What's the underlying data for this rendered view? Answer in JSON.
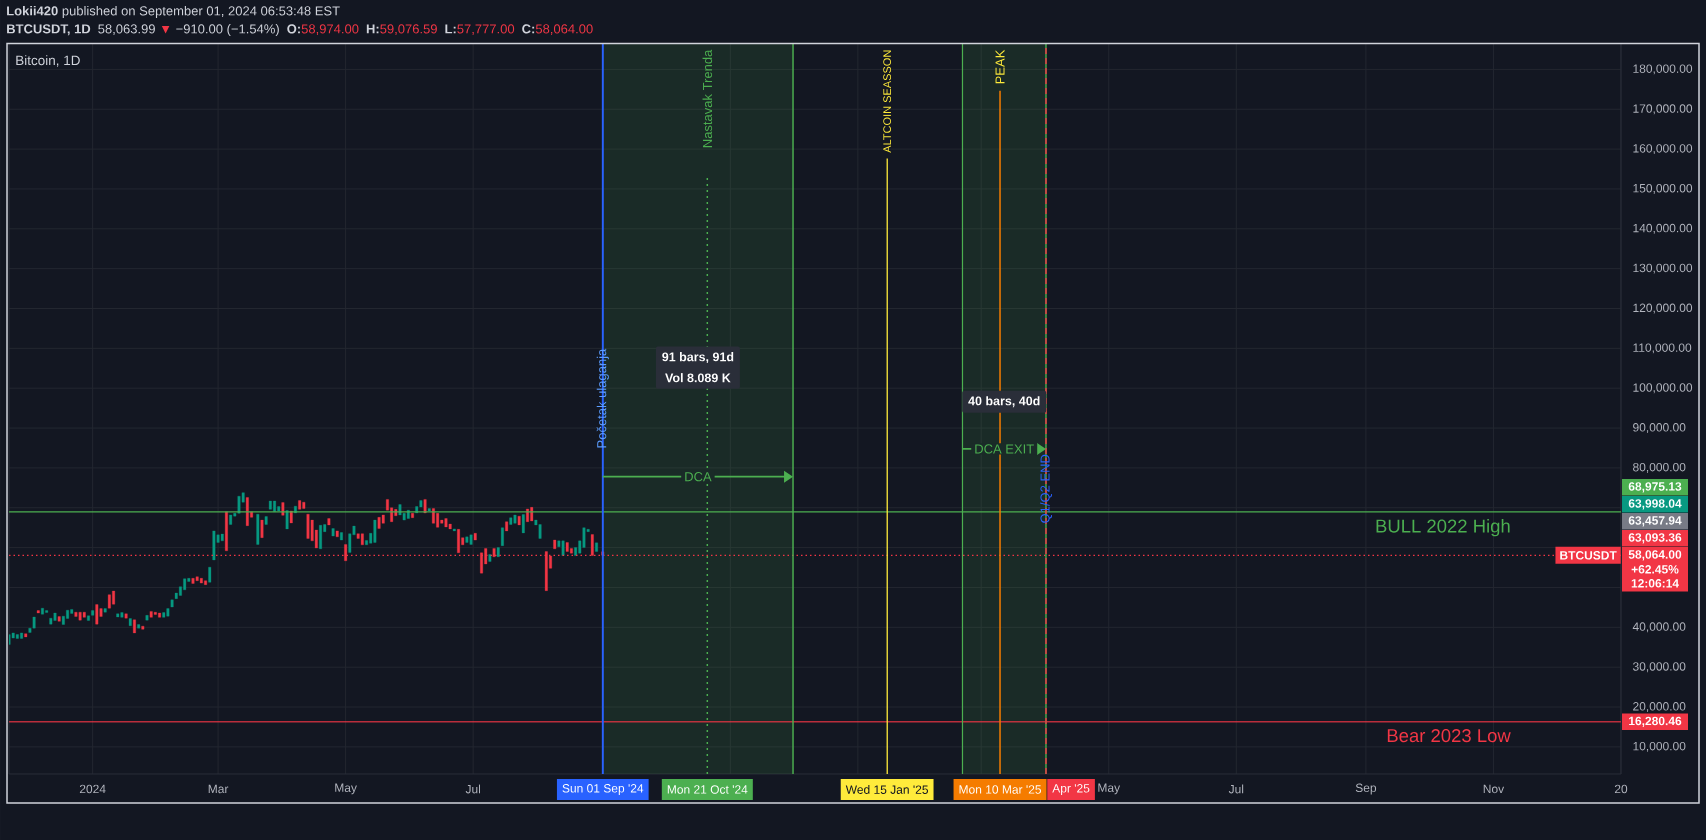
{
  "chart_data": {
    "type": "candlestick",
    "title": "Bitcoin, 1D",
    "subtitle": "**Lokii420** published on September 01, 2024 06:53:48 EST",
    "x": [
      "2023-11-22",
      "2023-11-24",
      "2023-11-26",
      "2023-11-28",
      "2023-11-30",
      "2023-12-02",
      "2023-12-04",
      "2023-12-06",
      "2023-12-08",
      "2023-12-10",
      "2023-12-12",
      "2023-12-14",
      "2023-12-16",
      "2023-12-18",
      "2023-12-20",
      "2023-12-22",
      "2023-12-24",
      "2023-12-26",
      "2023-12-28",
      "2023-12-30",
      "2024-01-01",
      "2024-01-03",
      "2024-01-05",
      "2024-01-07",
      "2024-01-09",
      "2024-01-11",
      "2024-01-13",
      "2024-01-15",
      "2024-01-17",
      "2024-01-19",
      "2024-01-21",
      "2024-01-23",
      "2024-01-25",
      "2024-01-27",
      "2024-01-29",
      "2024-01-31",
      "2024-02-02",
      "2024-02-04",
      "2024-02-06",
      "2024-02-08",
      "2024-02-10",
      "2024-02-12",
      "2024-02-14",
      "2024-02-16",
      "2024-02-18",
      "2024-02-20",
      "2024-02-22",
      "2024-02-24",
      "2024-02-26",
      "2024-02-28",
      "2024-03-01",
      "2024-03-03",
      "2024-03-05",
      "2024-03-07",
      "2024-03-09",
      "2024-03-11",
      "2024-03-13",
      "2024-03-15",
      "2024-03-17",
      "2024-03-20",
      "2024-03-22",
      "2024-03-24",
      "2024-03-26",
      "2024-03-28",
      "2024-03-30",
      "2024-04-01",
      "2024-04-03",
      "2024-04-05",
      "2024-04-07",
      "2024-04-09",
      "2024-04-11",
      "2024-04-13",
      "2024-04-15",
      "2024-04-17",
      "2024-04-19",
      "2024-04-21",
      "2024-04-23",
      "2024-04-25",
      "2024-04-27",
      "2024-04-29",
      "2024-05-01",
      "2024-05-03",
      "2024-05-05",
      "2024-05-07",
      "2024-05-09",
      "2024-05-11",
      "2024-05-13",
      "2024-05-15",
      "2024-05-17",
      "2024-05-19",
      "2024-05-21",
      "2024-05-23",
      "2024-05-25",
      "2024-05-27",
      "2024-05-29",
      "2024-05-31",
      "2024-06-02",
      "2024-06-04",
      "2024-06-06",
      "2024-06-08",
      "2024-06-10",
      "2024-06-12",
      "2024-06-14",
      "2024-06-16",
      "2024-06-18",
      "2024-06-20",
      "2024-06-22",
      "2024-06-24",
      "2024-06-26",
      "2024-06-28",
      "2024-06-30",
      "2024-07-02",
      "2024-07-05",
      "2024-07-07",
      "2024-07-09",
      "2024-07-11",
      "2024-07-13",
      "2024-07-15",
      "2024-07-17",
      "2024-07-19",
      "2024-07-21",
      "2024-07-23",
      "2024-07-25",
      "2024-07-27",
      "2024-07-29",
      "2024-07-31",
      "2024-08-02",
      "2024-08-05",
      "2024-08-07",
      "2024-08-09",
      "2024-08-11",
      "2024-08-13",
      "2024-08-15",
      "2024-08-17",
      "2024-08-19",
      "2024-08-21",
      "2024-08-23",
      "2024-08-25",
      "2024-08-27",
      "2024-08-29",
      "2024-09-01"
    ],
    "ohlc": [
      [
        35700,
        38200,
        35700,
        38200
      ],
      [
        37300,
        38600,
        37300,
        38600
      ],
      [
        37200,
        38200,
        37200,
        38200
      ],
      [
        37200,
        38600,
        37200,
        38600
      ],
      [
        38400,
        38400,
        37600,
        37600
      ],
      [
        38700,
        39800,
        38700,
        39800
      ],
      [
        39800,
        42600,
        39800,
        42600
      ],
      [
        44200,
        44200,
        43600,
        43600
      ],
      [
        43300,
        44800,
        43300,
        44800
      ],
      [
        43700,
        44200,
        43700,
        44200
      ],
      [
        40800,
        42300,
        40800,
        42300
      ],
      [
        41700,
        43600,
        41700,
        43600
      ],
      [
        42700,
        42700,
        41500,
        41500
      ],
      [
        40700,
        42800,
        40700,
        42800
      ],
      [
        42200,
        44300,
        42200,
        44300
      ],
      [
        43500,
        44500,
        43500,
        44500
      ],
      [
        43800,
        43800,
        42700,
        42700
      ],
      [
        43800,
        43800,
        41800,
        41800
      ],
      [
        43800,
        43800,
        42500,
        42500
      ],
      [
        41700,
        42900,
        41700,
        42900
      ],
      [
        43000,
        44200,
        43000,
        44200
      ],
      [
        45700,
        45700,
        40800,
        40800
      ],
      [
        44700,
        44700,
        42700,
        42700
      ],
      [
        43800,
        44700,
        43800,
        44700
      ],
      [
        48200,
        48200,
        44800,
        44800
      ],
      [
        49100,
        49100,
        45800,
        45800
      ],
      [
        42600,
        43400,
        42600,
        43400
      ],
      [
        42500,
        43700,
        42500,
        43700
      ],
      [
        43400,
        43400,
        42300,
        42300
      ],
      [
        40400,
        42200,
        40400,
        42200
      ],
      [
        41900,
        41900,
        38600,
        38600
      ],
      [
        39800,
        40700,
        39800,
        40700
      ],
      [
        40300,
        40300,
        39500,
        39500
      ],
      [
        41800,
        43000,
        41800,
        43000
      ],
      [
        44000,
        44000,
        42500,
        42500
      ],
      [
        43800,
        43800,
        43200,
        43200
      ],
      [
        43600,
        43600,
        42500,
        42500
      ],
      [
        42500,
        43700,
        42500,
        43700
      ],
      [
        42800,
        44700,
        42800,
        44700
      ],
      [
        45100,
        46900,
        45100,
        46900
      ],
      [
        47200,
        48600,
        47200,
        48600
      ],
      [
        48000,
        50200,
        48000,
        50200
      ],
      [
        49400,
        52200,
        49400,
        52200
      ],
      [
        51500,
        52300,
        51500,
        52300
      ],
      [
        52300,
        52300,
        51000,
        51000
      ],
      [
        52700,
        52700,
        51700,
        51700
      ],
      [
        52300,
        52300,
        51100,
        51100
      ],
      [
        51700,
        51700,
        50700,
        50700
      ],
      [
        51300,
        55100,
        51300,
        55100
      ],
      [
        56900,
        64200,
        56900,
        64200
      ],
      [
        61300,
        63200,
        61300,
        63200
      ],
      [
        61700,
        63400,
        61700,
        63400
      ],
      [
        69000,
        69000,
        59200,
        59200
      ],
      [
        65800,
        68200,
        65800,
        68200
      ],
      [
        67900,
        68600,
        67900,
        68600
      ],
      [
        68600,
        72900,
        68600,
        72900
      ],
      [
        71400,
        73800,
        71400,
        73800
      ],
      [
        72600,
        72600,
        65500,
        65500
      ],
      [
        69000,
        69000,
        67600,
        67600
      ],
      [
        60800,
        68400,
        60800,
        68400
      ],
      [
        66900,
        66900,
        62500,
        62500
      ],
      [
        65800,
        67800,
        65800,
        67800
      ],
      [
        69600,
        71700,
        69600,
        71700
      ],
      [
        69000,
        71700,
        69000,
        71700
      ],
      [
        69200,
        70300,
        69200,
        70300
      ],
      [
        71300,
        71300,
        68100,
        68100
      ],
      [
        64700,
        69300,
        64700,
        69300
      ],
      [
        69200,
        69200,
        66200,
        66200
      ],
      [
        68700,
        70400,
        68700,
        70400
      ],
      [
        71800,
        71800,
        69600,
        69600
      ],
      [
        71400,
        71400,
        69800,
        69800
      ],
      [
        68400,
        68400,
        62300,
        62300
      ],
      [
        66900,
        66900,
        61700,
        61700
      ],
      [
        64400,
        64400,
        59900,
        59900
      ],
      [
        59700,
        65600,
        59700,
        65600
      ],
      [
        64000,
        65800,
        64000,
        65800
      ],
      [
        67300,
        67300,
        65700,
        65700
      ],
      [
        62900,
        64800,
        62900,
        64800
      ],
      [
        64200,
        64200,
        62700,
        62700
      ],
      [
        61900,
        63800,
        61900,
        63800
      ],
      [
        60800,
        60800,
        56700,
        56700
      ],
      [
        58800,
        63500,
        58800,
        63500
      ],
      [
        63200,
        65400,
        63200,
        65400
      ],
      [
        63500,
        63500,
        62300,
        62300
      ],
      [
        63500,
        63500,
        60700,
        60700
      ],
      [
        60700,
        61800,
        60700,
        61800
      ],
      [
        61100,
        63600,
        61100,
        63600
      ],
      [
        61300,
        66900,
        61300,
        66900
      ],
      [
        67600,
        67600,
        64800,
        64800
      ],
      [
        68200,
        68200,
        66100,
        66100
      ],
      [
        72100,
        72100,
        69400,
        69400
      ],
      [
        70000,
        70000,
        66500,
        66500
      ],
      [
        69600,
        69600,
        68000,
        68000
      ],
      [
        68200,
        70800,
        68200,
        70800
      ],
      [
        66900,
        68600,
        66900,
        68600
      ],
      [
        67300,
        69400,
        67300,
        69400
      ],
      [
        68600,
        68600,
        67500,
        67500
      ],
      [
        68700,
        70300,
        68700,
        70300
      ],
      [
        70200,
        71800,
        70200,
        71800
      ],
      [
        72100,
        72100,
        68700,
        68700
      ],
      [
        69200,
        69800,
        69200,
        69800
      ],
      [
        69800,
        69800,
        66100,
        66100
      ],
      [
        68600,
        68600,
        65100,
        65100
      ],
      [
        66900,
        66900,
        66100,
        66100
      ],
      [
        67300,
        67300,
        65200,
        65200
      ],
      [
        65900,
        65900,
        64700,
        64700
      ],
      [
        64200,
        64700,
        64200,
        64700
      ],
      [
        64600,
        64600,
        58700,
        58700
      ],
      [
        62500,
        62500,
        60700,
        60700
      ],
      [
        61300,
        62700,
        61300,
        62700
      ],
      [
        60800,
        63200,
        60800,
        63200
      ],
      [
        63600,
        63600,
        61900,
        61900
      ],
      [
        58700,
        58700,
        53600,
        53600
      ],
      [
        59800,
        59800,
        55900,
        55900
      ],
      [
        56500,
        58300,
        56500,
        58300
      ],
      [
        59800,
        59800,
        57700,
        57700
      ],
      [
        57700,
        60000,
        57700,
        60000
      ],
      [
        60500,
        65000,
        60500,
        65000
      ],
      [
        66500,
        66500,
        64200,
        64200
      ],
      [
        65800,
        67500,
        65800,
        67500
      ],
      [
        66100,
        68200,
        66100,
        68200
      ],
      [
        67900,
        67900,
        65700,
        65700
      ],
      [
        63700,
        68300,
        63700,
        68300
      ],
      [
        69700,
        69700,
        66500,
        66500
      ],
      [
        70100,
        70100,
        66700,
        66700
      ],
      [
        65700,
        66900,
        65700,
        66900
      ],
      [
        62300,
        65800,
        62300,
        65800
      ],
      [
        59000,
        59000,
        49200,
        49200
      ],
      [
        57900,
        57900,
        54800,
        54800
      ],
      [
        61900,
        61900,
        59700,
        59700
      ],
      [
        60200,
        61700,
        60200,
        61700
      ],
      [
        58000,
        61700,
        58000,
        61700
      ],
      [
        61300,
        61300,
        59000,
        59000
      ],
      [
        59800,
        59800,
        58600,
        58600
      ],
      [
        58000,
        60000,
        58000,
        60000
      ],
      [
        58600,
        61700,
        58600,
        61700
      ],
      [
        60000,
        65000,
        60000,
        65000
      ],
      [
        64000,
        64600,
        64000,
        64600
      ],
      [
        63300,
        63300,
        58000,
        58000
      ],
      [
        59000,
        61200,
        59000,
        61200
      ],
      [
        58974,
        59076.59,
        57777,
        58064
      ]
    ],
    "colors": [
      "#089981",
      "#089981",
      "#089981",
      "#089981",
      "#f23645",
      "#089981",
      "#089981",
      "#f23645",
      "#089981",
      "#089981",
      "#089981",
      "#089981",
      "#f23645",
      "#089981",
      "#089981",
      "#089981",
      "#f23645",
      "#f23645",
      "#f23645",
      "#089981",
      "#089981",
      "#f23645",
      "#f23645",
      "#089981",
      "#f23645",
      "#f23645",
      "#089981",
      "#089981",
      "#f23645",
      "#089981",
      "#f23645",
      "#089981",
      "#f23645",
      "#089981",
      "#f23645",
      "#f23645",
      "#f23645",
      "#089981",
      "#089981",
      "#089981",
      "#089981",
      "#089981",
      "#089981",
      "#089981",
      "#f23645",
      "#f23645",
      "#f23645",
      "#f23645",
      "#089981",
      "#089981",
      "#089981",
      "#089981",
      "#f23645",
      "#089981",
      "#089981",
      "#089981",
      "#089981",
      "#f23645",
      "#f23645",
      "#089981",
      "#f23645",
      "#089981",
      "#089981",
      "#089981",
      "#089981",
      "#f23645",
      "#089981",
      "#f23645",
      "#089981",
      "#f23645",
      "#f23645",
      "#f23645",
      "#f23645",
      "#f23645",
      "#089981",
      "#089981",
      "#f23645",
      "#089981",
      "#f23645",
      "#089981",
      "#f23645",
      "#089981",
      "#089981",
      "#f23645",
      "#f23645",
      "#089981",
      "#089981",
      "#089981",
      "#f23645",
      "#f23645",
      "#f23645",
      "#f23645",
      "#f23645",
      "#089981",
      "#089981",
      "#089981",
      "#f23645",
      "#089981",
      "#089981",
      "#f23645",
      "#089981",
      "#f23645",
      "#f23645",
      "#f23645",
      "#f23645",
      "#f23645",
      "#089981",
      "#f23645",
      "#f23645",
      "#089981",
      "#089981",
      "#f23645",
      "#f23645",
      "#f23645",
      "#089981",
      "#f23645",
      "#089981",
      "#089981",
      "#f23645",
      "#089981",
      "#089981",
      "#f23645",
      "#089981",
      "#f23645",
      "#f23645",
      "#089981",
      "#089981",
      "#f23645",
      "#f23645",
      "#f23645",
      "#089981",
      "#089981",
      "#f23645",
      "#f23645",
      "#089981",
      "#089981",
      "#089981",
      "#089981",
      "#f23645",
      "#089981",
      "#f23645"
    ],
    "xlim": [
      "2023-11-22",
      "2026-01-01"
    ],
    "xticks": [
      {
        "value": "2024-01-01",
        "label": "2024"
      },
      {
        "value": "2024-03-01",
        "label": "Mar"
      },
      {
        "value": "2024-05-01",
        "label": "May"
      },
      {
        "value": "2024-07-01",
        "label": "Jul"
      },
      {
        "value": "2024-09-01",
        "label": null
      },
      {
        "value": "2024-11-01",
        "label": null
      },
      {
        "value": "2025-01-01",
        "label": null
      },
      {
        "value": "2025-03-01",
        "label": null
      },
      {
        "value": "2025-05-01",
        "label": "May"
      },
      {
        "value": "2025-07-01",
        "label": "Jul"
      },
      {
        "value": "2025-09-01",
        "label": "Sep"
      },
      {
        "value": "2025-11-01",
        "label": "Nov"
      },
      {
        "value": "2026-01-01",
        "label": "20"
      }
    ],
    "ylim": [
      3200,
      186500
    ],
    "yticks": [
      {
        "value": 10000,
        "label": "10,000.00"
      },
      {
        "value": 20000,
        "label": "20,000.00"
      },
      {
        "value": 30000,
        "label": "30,000.00"
      },
      {
        "value": 40000,
        "label": "40,000.00"
      },
      {
        "value": 50000,
        "label": null
      },
      {
        "value": 60000,
        "label": null
      },
      {
        "value": 70000,
        "label": null
      },
      {
        "value": 80000,
        "label": "80,000.00"
      },
      {
        "value": 90000,
        "label": "90,000.00"
      },
      {
        "value": 100000,
        "label": "100,000.00"
      },
      {
        "value": 110000,
        "label": "110,000.00"
      },
      {
        "value": 120000,
        "label": "120,000.00"
      },
      {
        "value": 130000,
        "label": "130,000.00"
      },
      {
        "value": 140000,
        "label": "140,000.00"
      },
      {
        "value": 150000,
        "label": "150,000.00"
      },
      {
        "value": 160000,
        "label": "160,000.00"
      },
      {
        "value": 170000,
        "label": "170,000.00"
      },
      {
        "value": 180000,
        "label": "180,000.00"
      }
    ],
    "grid": true,
    "ref_lines": [
      {
        "axis": "y",
        "value": 68975.13,
        "label": "BULL 2022 High",
        "color": "#4caf50"
      },
      {
        "axis": "y",
        "value": 16280.46,
        "label": "Bear 2023 Low",
        "color": "#f23645"
      },
      {
        "axis": "y",
        "value": 58064,
        "label": "BTCUSDT",
        "color": "#f23645",
        "line_style": "dotted"
      },
      {
        "axis": "x",
        "value": "2024-12-01",
        "color": "#4caf50"
      },
      {
        "axis": "x",
        "value": "2025-02-20",
        "color": "#4caf50"
      },
      {
        "axis": "x",
        "value": "2025-04-01",
        "color": "#4caf50"
      },
      {
        "axis": "x",
        "value": "2024-09-01",
        "label": "Početak ulaganja",
        "color": "#2962ff"
      },
      {
        "axis": "x",
        "value": "2024-10-21",
        "label": "Nastavak Trenda",
        "color": "#4caf50",
        "line_style": "dotted"
      },
      {
        "axis": "x",
        "value": "2025-01-15",
        "label": "ALTCOIN SEASSON",
        "color": "#ffeb3b"
      },
      {
        "axis": "x",
        "value": "2025-03-10",
        "label": "PEAK",
        "color": "#f57c00"
      },
      {
        "axis": "x",
        "value": "2025-04-01",
        "label": "Q1/Q2 END",
        "color": "#f23645",
        "line_style": "dashed"
      }
    ],
    "bands": [
      {
        "axis": "x",
        "from": "2024-09-01",
        "to": "2024-12-01",
        "label": "DCA",
        "color": "#4caf50"
      },
      {
        "axis": "x",
        "from": "2025-02-20",
        "to": "2025-04-01",
        "label": "DCA EXIT",
        "color": "#4caf50"
      }
    ],
    "annotations": [
      "BTCUSDT, 1D",
      "58,063.99",
      "▼",
      "−910.00 (−1.54%)",
      "O:",
      "58,974.00",
      "H:",
      "59,076.59",
      "L:",
      "57,777.00",
      "C:",
      "58,064.00",
      "68,975.13",
      "63,998.04",
      "63,457.94",
      "63,093.36",
      "58,064.00",
      "+62.45%",
      "12:06:14",
      "16,280.46",
      "Sun 01 Sep '24",
      "Mon 21 Oct '24",
      "Wed 15 Jan '25",
      "Mon 10 Mar '25",
      "Apr '25",
      "91 bars, 91d",
      "Vol 8.089 K",
      "40 bars, 40d"
    ]
  }
}
